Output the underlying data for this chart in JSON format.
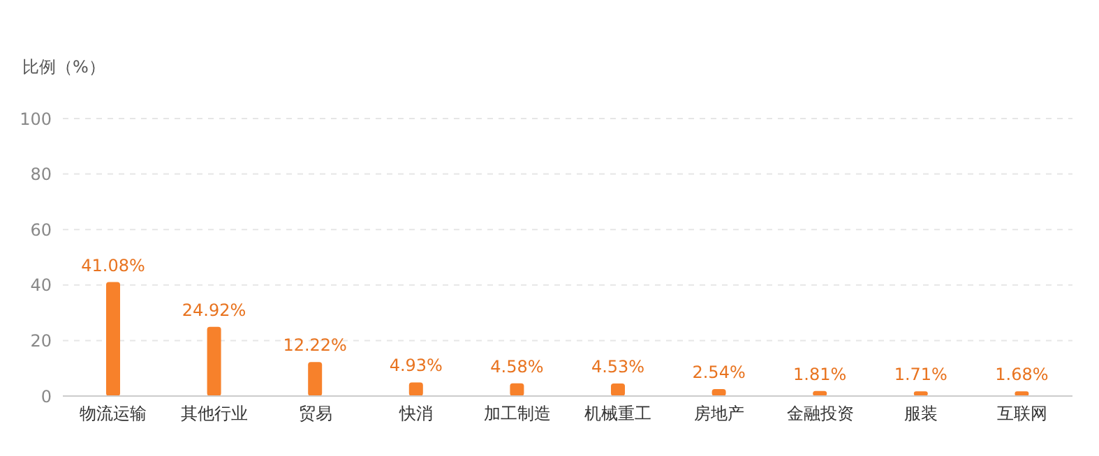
{
  "chart_data": {
    "type": "bar",
    "ylabel": "比例（%）",
    "categories": [
      "物流运输",
      "其他行业",
      "贸易",
      "快消",
      "加工制造",
      "机械重工",
      "房地产",
      "金融投资",
      "服装",
      "互联网"
    ],
    "values": [
      41.08,
      24.92,
      12.22,
      4.93,
      4.58,
      4.53,
      2.54,
      1.81,
      1.71,
      1.68
    ],
    "value_labels": [
      "41.08%",
      "24.92%",
      "12.22%",
      "4.93%",
      "4.58%",
      "4.53%",
      "2.54%",
      "1.81%",
      "1.71%",
      "1.68%"
    ],
    "color": "#f7812b",
    "ylim": [
      0,
      100
    ],
    "yticks": [
      0,
      20,
      40,
      60,
      80,
      100
    ],
    "grid": "y"
  }
}
